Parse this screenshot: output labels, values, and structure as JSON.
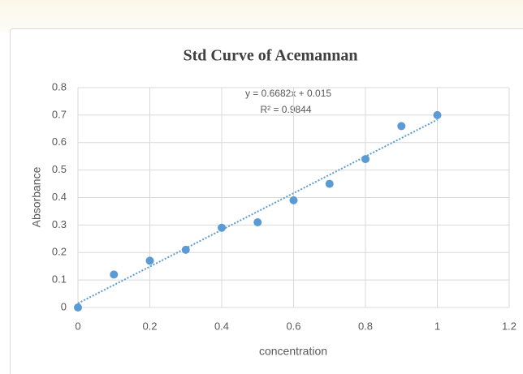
{
  "chart_data": {
    "type": "scatter",
    "title": "Std Curve of Acemannan",
    "x_label": "concentration",
    "y_label": "Absorbance",
    "x": [
      0,
      0.1,
      0.2,
      0.3,
      0.4,
      0.5,
      0.6,
      0.7,
      0.8,
      0.9,
      1
    ],
    "series": [
      {
        "name": "Absorbance",
        "color": "#5b9bd5",
        "values": [
          0,
          0.12,
          0.17,
          0.21,
          0.29,
          0.31,
          0.39,
          0.45,
          0.54,
          0.66,
          0.7
        ]
      }
    ],
    "trendline": {
      "slope": 0.6682,
      "intercept": 0.015
    },
    "annotations": [
      "y = 0.6682x + 0.015",
      "R² = 0.9844"
    ],
    "xlim": [
      0,
      1.2
    ],
    "xticks": [
      0,
      0.2,
      0.4,
      0.6,
      0.8,
      1,
      1.2
    ],
    "ylim": [
      0,
      0.8
    ],
    "yticks": [
      0,
      0.1,
      0.2,
      0.3,
      0.4,
      0.5,
      0.6,
      0.7,
      0.8
    ],
    "grid": true
  }
}
